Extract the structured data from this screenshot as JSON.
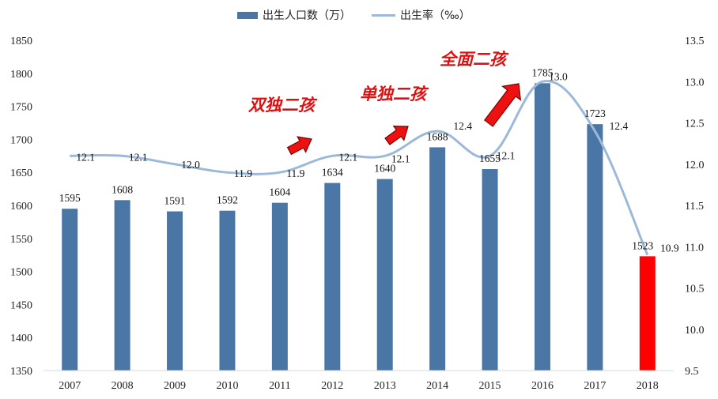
{
  "chart_data": {
    "type": "bar",
    "categories": [
      "2007",
      "2008",
      "2009",
      "2010",
      "2011",
      "2012",
      "2013",
      "2014",
      "2015",
      "2016",
      "2017",
      "2018"
    ],
    "series": [
      {
        "name": "出生人口数（万）",
        "type": "bar",
        "axis": "left",
        "values": [
          1595,
          1608,
          1591,
          1592,
          1604,
          1634,
          1640,
          1688,
          1655,
          1785,
          1723,
          1523
        ],
        "color": "#4a76a6",
        "highlight_color": "#ff0000",
        "highlight_index": 11
      },
      {
        "name": "出生率（‰）",
        "type": "line",
        "axis": "right",
        "values": [
          12.1,
          12.1,
          12.0,
          11.9,
          11.9,
          12.1,
          12.1,
          12.4,
          12.1,
          13.0,
          12.4,
          10.9
        ],
        "color": "#9cb9da"
      }
    ],
    "y_left": {
      "min": 1350,
      "max": 1850,
      "step": 50,
      "ticks": [
        "1350",
        "1400",
        "1450",
        "1500",
        "1550",
        "1600",
        "1650",
        "1700",
        "1750",
        "1800",
        "1850"
      ]
    },
    "y_right": {
      "min": 9.5,
      "max": 13.5,
      "step": 0.5,
      "ticks": [
        "9.5",
        "10.0",
        "10.5",
        "11.0",
        "11.5",
        "12.0",
        "12.5",
        "13.0",
        "13.5"
      ]
    },
    "grid": false,
    "legend_position": "top",
    "annotations": [
      {
        "text": "双独二孩",
        "year": "2011"
      },
      {
        "text": "单独二孩",
        "year": "2013"
      },
      {
        "text": "全面二孩",
        "year": "2015"
      }
    ]
  }
}
